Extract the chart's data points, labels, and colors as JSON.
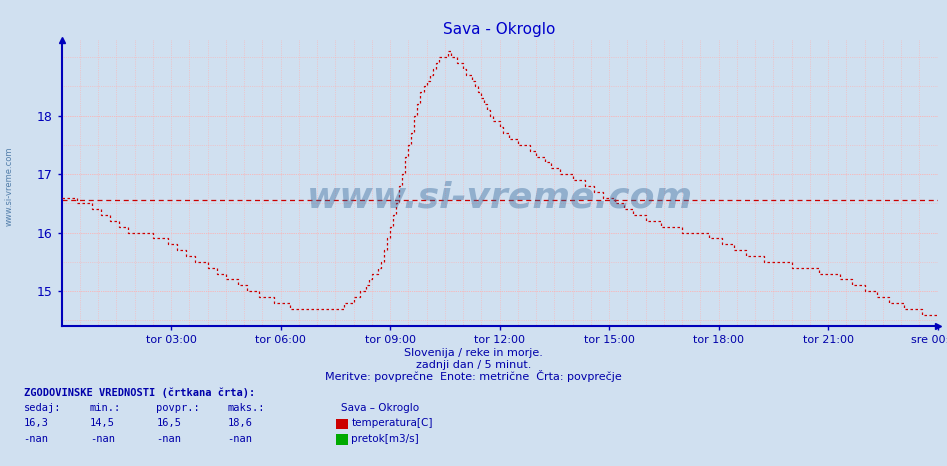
{
  "title": "Sava - Okroglo",
  "title_color": "#0000cc",
  "bg_color": "#d0e0f0",
  "plot_bg_color": "#d0e0f0",
  "line_color": "#cc0000",
  "hist_line_color": "#cc0000",
  "axis_color": "#0000bb",
  "grid_color": "#ffb0b0",
  "text_color": "#0000aa",
  "watermark_color": "#336699",
  "subtitle1": "Slovenija / reke in morje.",
  "subtitle2": "zadnji dan / 5 minut.",
  "subtitle3": "Meritve: povprečne  Enote: metrične  Črta: povprečje",
  "footer_title": "ZGODOVINSKE VREDNOSTI (črtkana črta):",
  "col_headers": [
    "sedaj:",
    "min.:",
    "povpr.:",
    "maks.:"
  ],
  "col_values_temp": [
    "16,3",
    "14,5",
    "16,5",
    "18,6"
  ],
  "col_values_flow": [
    "-nan",
    "-nan",
    "-nan",
    "-nan"
  ],
  "legend_station": "Sava – Okroglo",
  "legend_temp": "temperatura[C]",
  "legend_flow": "pretok[m3/s]",
  "legend_temp_color": "#cc0000",
  "legend_flow_color": "#00aa00",
  "x_tick_labels": [
    "tor 03:00",
    "tor 06:00",
    "tor 09:00",
    "tor 12:00",
    "tor 15:00",
    "tor 18:00",
    "tor 21:00",
    "sre 00:00"
  ],
  "x_tick_positions": [
    36,
    72,
    108,
    144,
    180,
    216,
    252,
    288
  ],
  "total_points": 288,
  "ylim_min": 14.4,
  "ylim_max": 19.3,
  "yticks": [
    15,
    16,
    17,
    18
  ],
  "hist_avg": 16.55,
  "temperature_data": [
    16.6,
    16.6,
    16.6,
    16.6,
    16.6,
    16.5,
    16.5,
    16.5,
    16.5,
    16.5,
    16.4,
    16.4,
    16.4,
    16.3,
    16.3,
    16.3,
    16.2,
    16.2,
    16.2,
    16.1,
    16.1,
    16.1,
    16.0,
    16.0,
    16.0,
    16.0,
    16.0,
    16.0,
    16.0,
    16.0,
    15.9,
    15.9,
    15.9,
    15.9,
    15.9,
    15.8,
    15.8,
    15.8,
    15.7,
    15.7,
    15.7,
    15.6,
    15.6,
    15.6,
    15.5,
    15.5,
    15.5,
    15.5,
    15.4,
    15.4,
    15.4,
    15.3,
    15.3,
    15.3,
    15.2,
    15.2,
    15.2,
    15.2,
    15.1,
    15.1,
    15.1,
    15.0,
    15.0,
    15.0,
    15.0,
    14.9,
    14.9,
    14.9,
    14.9,
    14.9,
    14.8,
    14.8,
    14.8,
    14.8,
    14.8,
    14.7,
    14.7,
    14.7,
    14.7,
    14.7,
    14.7,
    14.7,
    14.7,
    14.7,
    14.7,
    14.7,
    14.7,
    14.7,
    14.7,
    14.7,
    14.7,
    14.7,
    14.7,
    14.8,
    14.8,
    14.8,
    14.9,
    14.9,
    15.0,
    15.0,
    15.1,
    15.2,
    15.3,
    15.3,
    15.4,
    15.5,
    15.7,
    15.9,
    16.1,
    16.3,
    16.5,
    16.8,
    17.0,
    17.3,
    17.5,
    17.7,
    18.0,
    18.2,
    18.4,
    18.5,
    18.6,
    18.7,
    18.8,
    18.9,
    19.0,
    19.0,
    19.0,
    19.1,
    19.0,
    19.0,
    18.9,
    18.9,
    18.8,
    18.7,
    18.7,
    18.6,
    18.5,
    18.4,
    18.3,
    18.2,
    18.1,
    18.0,
    17.9,
    17.9,
    17.8,
    17.7,
    17.7,
    17.6,
    17.6,
    17.6,
    17.5,
    17.5,
    17.5,
    17.5,
    17.4,
    17.4,
    17.3,
    17.3,
    17.3,
    17.2,
    17.2,
    17.1,
    17.1,
    17.1,
    17.0,
    17.0,
    17.0,
    17.0,
    16.9,
    16.9,
    16.9,
    16.9,
    16.8,
    16.8,
    16.8,
    16.7,
    16.7,
    16.7,
    16.6,
    16.6,
    16.6,
    16.6,
    16.5,
    16.5,
    16.5,
    16.4,
    16.4,
    16.4,
    16.3,
    16.3,
    16.3,
    16.3,
    16.2,
    16.2,
    16.2,
    16.2,
    16.2,
    16.1,
    16.1,
    16.1,
    16.1,
    16.1,
    16.1,
    16.1,
    16.0,
    16.0,
    16.0,
    16.0,
    16.0,
    16.0,
    16.0,
    16.0,
    16.0,
    15.9,
    15.9,
    15.9,
    15.9,
    15.8,
    15.8,
    15.8,
    15.8,
    15.7,
    15.7,
    15.7,
    15.7,
    15.6,
    15.6,
    15.6,
    15.6,
    15.6,
    15.6,
    15.5,
    15.5,
    15.5,
    15.5,
    15.5,
    15.5,
    15.5,
    15.5,
    15.5,
    15.4,
    15.4,
    15.4,
    15.4,
    15.4,
    15.4,
    15.4,
    15.4,
    15.4,
    15.3,
    15.3,
    15.3,
    15.3,
    15.3,
    15.3,
    15.3,
    15.2,
    15.2,
    15.2,
    15.2,
    15.1,
    15.1,
    15.1,
    15.1,
    15.0,
    15.0,
    15.0,
    15.0,
    14.9,
    14.9,
    14.9,
    14.9,
    14.8,
    14.8,
    14.8,
    14.8,
    14.8,
    14.7,
    14.7,
    14.7,
    14.7,
    14.7,
    14.7,
    14.6,
    14.6,
    14.6,
    14.6,
    14.6,
    14.6
  ]
}
